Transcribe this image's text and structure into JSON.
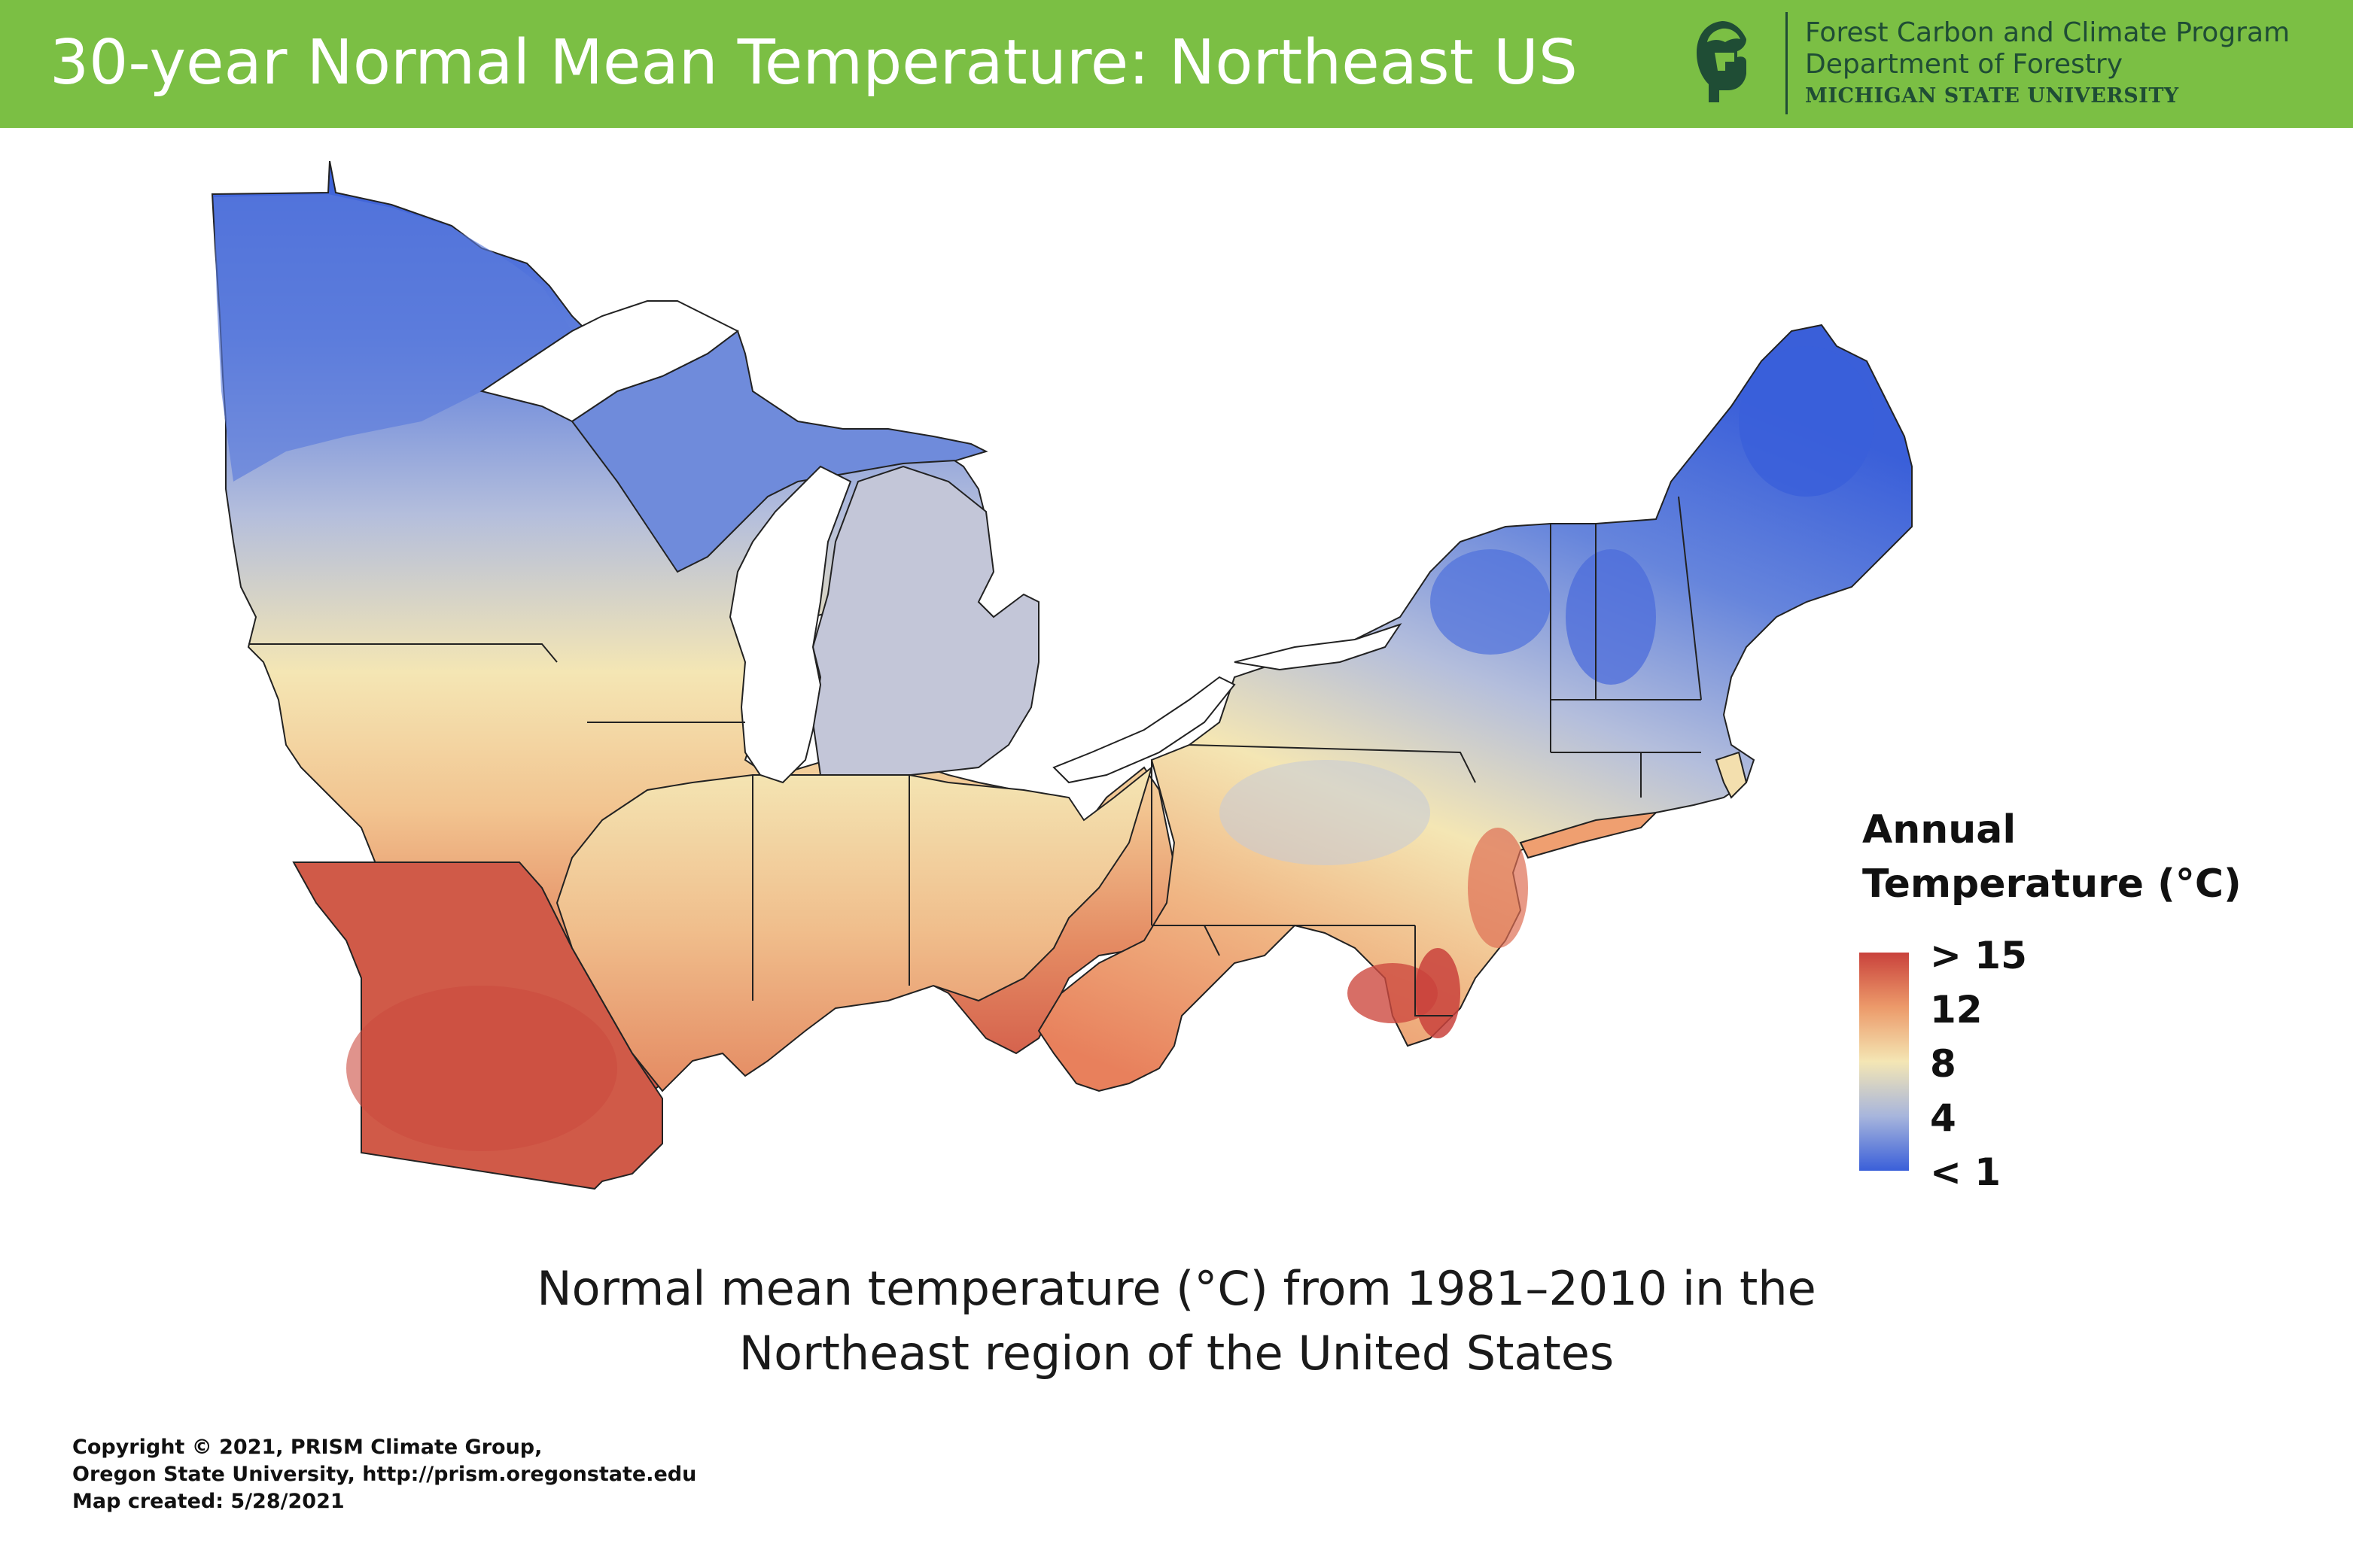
{
  "header": {
    "title": "30-year Normal Mean Temperature: Northeast US",
    "background_color": "#7bbf44",
    "org_line1": "Forest Carbon and Climate Program",
    "org_line2": "Department of Forestry",
    "org_line3": "MICHIGAN STATE UNIVERSITY",
    "logo_icon": "spartan-helmet-icon"
  },
  "legend": {
    "title_line1": "Annual",
    "title_line2": "Temperature (°C)",
    "labels": [
      "> 15",
      "12",
      "8",
      "4",
      "< 1"
    ],
    "colors": {
      "high": "#c9423c",
      "warm": "#ec9a6a",
      "mid": "#f4e6b4",
      "cool": "#a7b5dc",
      "low": "#3a5fd9"
    }
  },
  "map": {
    "description_colors": [
      "#3a5fd9",
      "#a7b5dc",
      "#f4e6b4",
      "#ec9a6a",
      "#c9423c"
    ]
  },
  "caption": {
    "line1": "Normal mean temperature (°C) from 1981–2010 in the",
    "line2": "Northeast region of the United States"
  },
  "credits": {
    "line1": "Copyright © 2021, PRISM Climate Group,",
    "line2": "Oregon State University, http://prism.oregonstate.edu",
    "line3": "Map created: 5/28/2021"
  }
}
